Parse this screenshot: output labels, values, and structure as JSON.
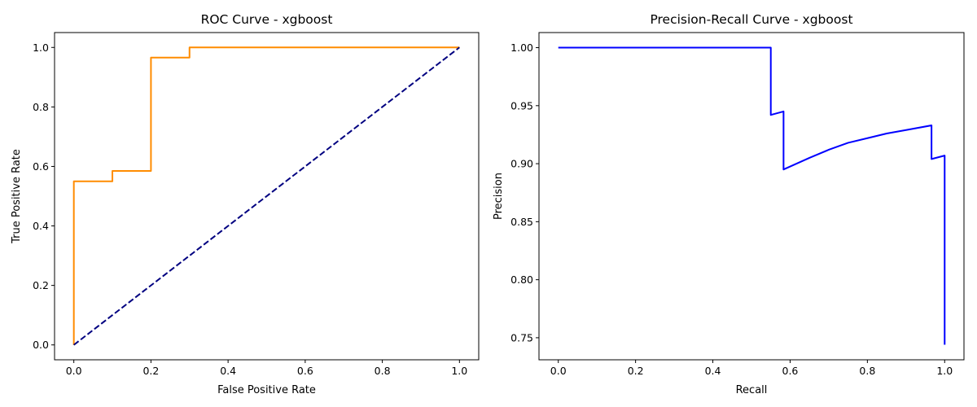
{
  "chart_data": [
    {
      "type": "line",
      "title": "ROC Curve - xgboost",
      "xlabel": "False Positive Rate",
      "ylabel": "True Positive Rate",
      "xlim": [
        -0.05,
        1.05
      ],
      "ylim": [
        -0.05,
        1.05
      ],
      "xticks": [
        "0.0",
        "0.2",
        "0.4",
        "0.6",
        "0.8",
        "1.0"
      ],
      "yticks": [
        "0.0",
        "0.2",
        "0.4",
        "0.6",
        "0.8",
        "1.0"
      ],
      "grid": false,
      "series": [
        {
          "color": "#ff8c00",
          "style": "solid",
          "x": [
            0.0,
            0.0,
            0.1,
            0.1,
            0.2,
            0.2,
            0.3,
            0.3,
            1.0
          ],
          "y": [
            0.0,
            0.55,
            0.55,
            0.585,
            0.585,
            0.966,
            0.966,
            1.0,
            1.0
          ]
        },
        {
          "color": "#000080",
          "style": "dashed",
          "x": [
            0.0,
            1.0
          ],
          "y": [
            0.0,
            1.0
          ]
        }
      ]
    },
    {
      "type": "line",
      "title": "Precision-Recall Curve - xgboost",
      "xlabel": "Recall",
      "ylabel": "Precision",
      "xlim": [
        -0.05,
        1.05
      ],
      "ylim": [
        0.731,
        1.013
      ],
      "xticks": [
        "0.0",
        "0.2",
        "0.4",
        "0.6",
        "0.8",
        "1.0"
      ],
      "yticks": [
        "0.75",
        "0.80",
        "0.85",
        "0.90",
        "0.95",
        "1.00"
      ],
      "grid": false,
      "series": [
        {
          "color": "#0000ff",
          "style": "solid",
          "x": [
            0.0,
            0.55,
            0.55,
            0.583,
            0.583,
            0.65,
            0.7,
            0.75,
            0.8,
            0.85,
            0.9,
            0.966,
            0.966,
            1.0,
            1.0
          ],
          "y": [
            1.0,
            1.0,
            0.942,
            0.945,
            0.895,
            0.905,
            0.912,
            0.918,
            0.922,
            0.926,
            0.929,
            0.933,
            0.904,
            0.907,
            0.744
          ]
        }
      ]
    }
  ]
}
